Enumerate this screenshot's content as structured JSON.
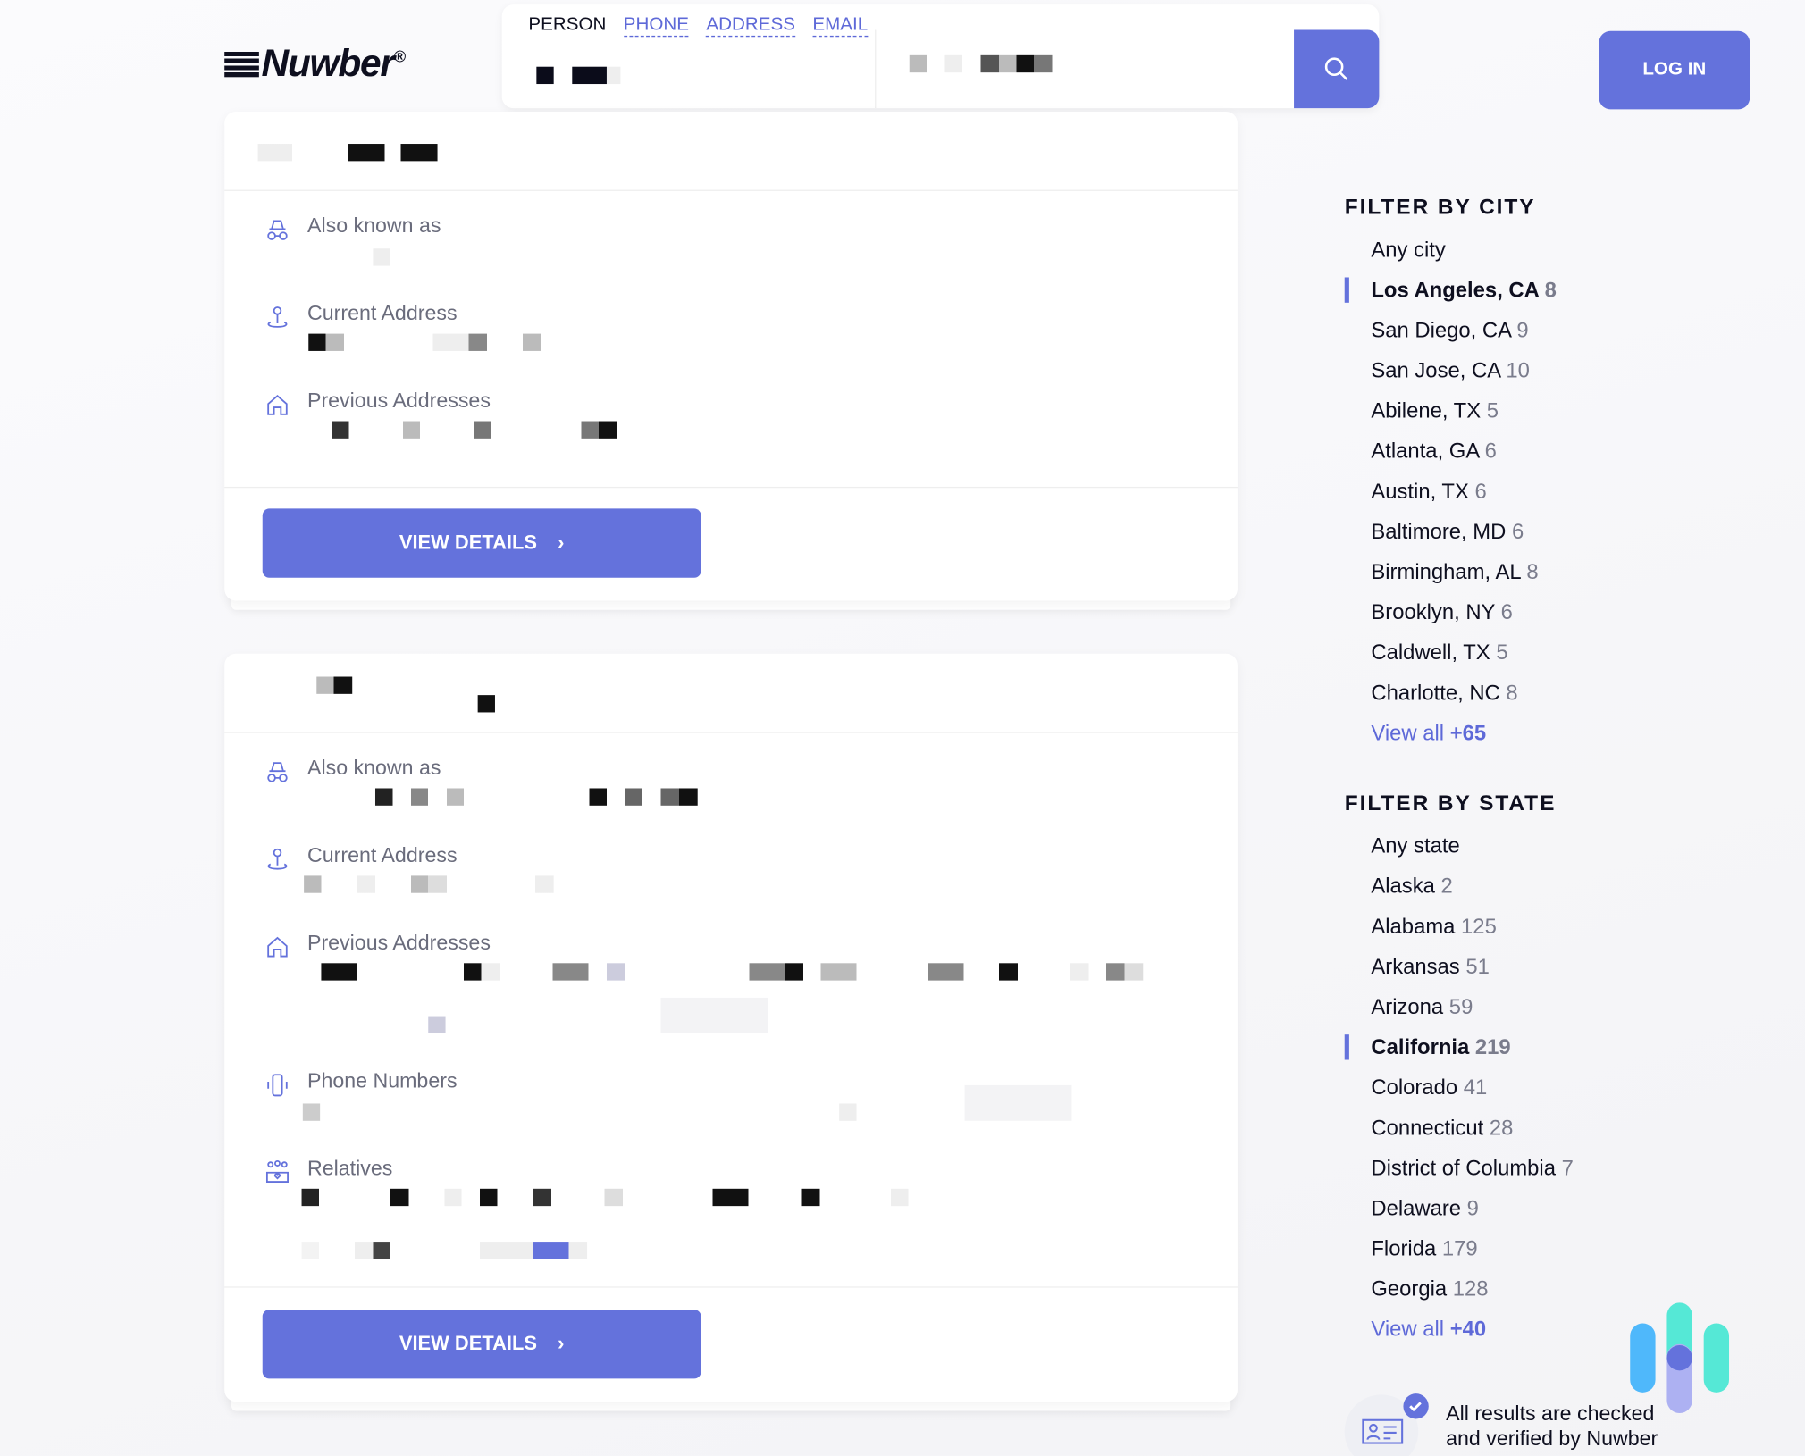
{
  "brand": {
    "name": "Nuwber",
    "reg": "®"
  },
  "search": {
    "tabs": [
      {
        "label": "PERSON",
        "active": true
      },
      {
        "label": "PHONE"
      },
      {
        "label": "ADDRESS"
      },
      {
        "label": "EMAIL"
      }
    ],
    "button_icon": "search-icon"
  },
  "header": {
    "login_label": "LOG IN"
  },
  "accent": "#6472dc",
  "results": [
    {
      "sections": [
        {
          "icon": "incognito-icon",
          "label": "Also known as"
        },
        {
          "icon": "location-pin-icon",
          "label": "Current Address"
        },
        {
          "icon": "home-icon",
          "label": "Previous Addresses"
        }
      ],
      "button": "VIEW DETAILS"
    },
    {
      "sections": [
        {
          "icon": "incognito-icon",
          "label": "Also known as"
        },
        {
          "icon": "location-pin-icon",
          "label": "Current Address"
        },
        {
          "icon": "home-icon",
          "label": "Previous Addresses"
        },
        {
          "icon": "phone-icon",
          "label": "Phone Numbers"
        },
        {
          "icon": "relatives-icon",
          "label": "Relatives"
        }
      ],
      "button": "VIEW DETAILS"
    }
  ],
  "filter_city": {
    "title": "FILTER BY CITY",
    "items": [
      {
        "name": "Any city",
        "count": ""
      },
      {
        "name": "Los Angeles, CA",
        "count": "8",
        "selected": true
      },
      {
        "name": "San Diego, CA",
        "count": "9"
      },
      {
        "name": "San Jose, CA",
        "count": "10"
      },
      {
        "name": "Abilene, TX",
        "count": "5"
      },
      {
        "name": "Atlanta, GA",
        "count": "6"
      },
      {
        "name": "Austin, TX",
        "count": "6"
      },
      {
        "name": "Baltimore, MD",
        "count": "6"
      },
      {
        "name": "Birmingham, AL",
        "count": "8"
      },
      {
        "name": "Brooklyn, NY",
        "count": "6"
      },
      {
        "name": "Caldwell, TX",
        "count": "5"
      },
      {
        "name": "Charlotte, NC",
        "count": "8"
      }
    ],
    "view_all": "View all",
    "view_all_count": "+65"
  },
  "filter_state": {
    "title": "FILTER BY STATE",
    "items": [
      {
        "name": "Any state",
        "count": ""
      },
      {
        "name": "Alaska",
        "count": "2"
      },
      {
        "name": "Alabama",
        "count": "125"
      },
      {
        "name": "Arkansas",
        "count": "51"
      },
      {
        "name": "Arizona",
        "count": "59"
      },
      {
        "name": "California",
        "count": "219",
        "selected": true
      },
      {
        "name": "Colorado",
        "count": "41"
      },
      {
        "name": "Connecticut",
        "count": "28"
      },
      {
        "name": "District of Columbia",
        "count": "7"
      },
      {
        "name": "Delaware",
        "count": "9"
      },
      {
        "name": "Florida",
        "count": "179"
      },
      {
        "name": "Georgia",
        "count": "128"
      }
    ],
    "view_all": "View all",
    "view_all_count": "+40"
  },
  "verified": {
    "line1": "All results are checked",
    "line2": "and verified by Nuwber"
  }
}
